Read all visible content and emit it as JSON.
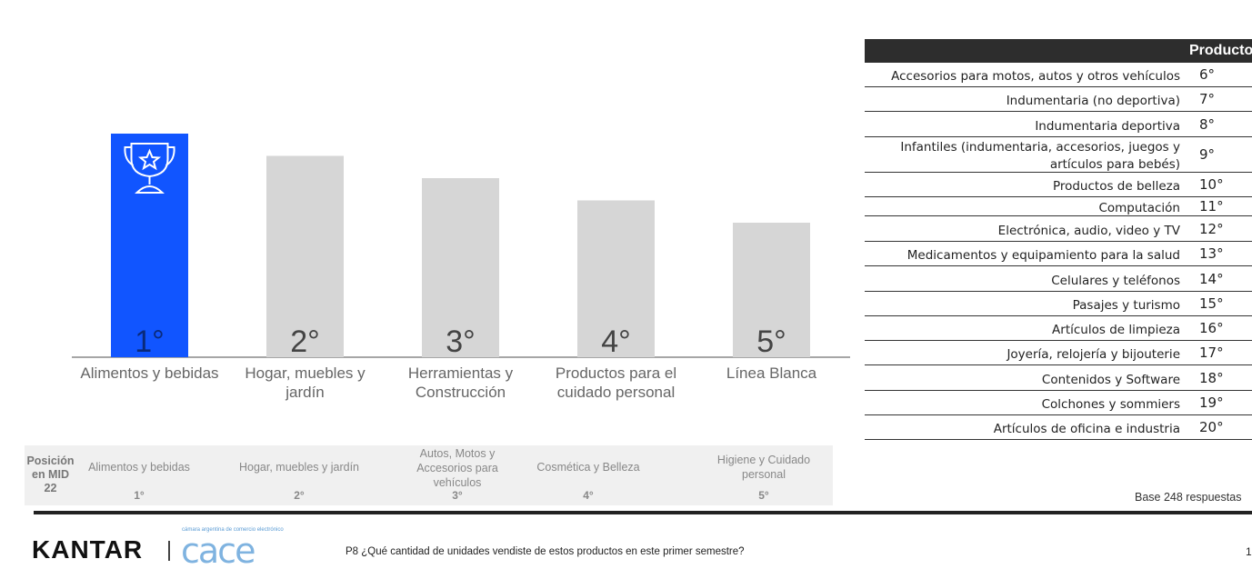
{
  "chart_data": {
    "type": "bar",
    "categories": [
      "Alimentos y bebidas",
      "Hogar, muebles y jardín",
      "Herramientas y Construcción",
      "Productos para el cuidado personal",
      "Línea Blanca"
    ],
    "rank_labels": [
      "1°",
      "2°",
      "3°",
      "4°",
      "5°"
    ],
    "values": [
      5,
      4,
      3,
      2,
      1
    ],
    "highlight_index": 0,
    "colors": {
      "highlight": "#1155FF",
      "default": "#D6D6D6",
      "rank_text_highlight": "#0a2a7a",
      "rank_text_default": "#444444"
    },
    "icon": "trophy-star-icon"
  },
  "table": {
    "header": "Productos",
    "rows": [
      {
        "label": "Accesorios para motos, autos y otros vehículos",
        "position": "6°"
      },
      {
        "label": "Indumentaria (no deportiva)",
        "position": "7°"
      },
      {
        "label": "Indumentaria deportiva",
        "position": "8°"
      },
      {
        "label": "Infantiles (indumentaria, accesorios, juegos y artículos para bebés)",
        "position": "9°"
      },
      {
        "label": "Productos de belleza",
        "position": "10°"
      },
      {
        "label": "Computación",
        "position": "11°"
      },
      {
        "label": "Electrónica, audio, video y TV",
        "position": "12°"
      },
      {
        "label": "Medicamentos y equipamiento para la salud",
        "position": "13°"
      },
      {
        "label": "Celulares y teléfonos",
        "position": "14°"
      },
      {
        "label": "Pasajes y turismo",
        "position": "15°"
      },
      {
        "label": "Artículos de limpieza",
        "position": "16°"
      },
      {
        "label": "Joyería, relojería y bijouterie",
        "position": "17°"
      },
      {
        "label": "Contenidos y Software",
        "position": "18°"
      },
      {
        "label": "Colchones y sommiers",
        "position": "19°"
      },
      {
        "label": "Artículos de oficina e industria",
        "position": "20°"
      }
    ]
  },
  "mid": {
    "title": "Posición en MID 22",
    "items": [
      {
        "label": "Alimentos y bebidas",
        "rank": "1°"
      },
      {
        "label": "Hogar, muebles y jardín",
        "rank": "2°"
      },
      {
        "label": "Autos, Motos y Accesorios para vehículos",
        "rank": "3°"
      },
      {
        "label": "Cosmética y Belleza",
        "rank": "4°"
      },
      {
        "label": "Higiene y Cuidado personal",
        "rank": "5°"
      }
    ]
  },
  "base_note": "Base 248 respuestas",
  "footer": {
    "brand": "KANTAR",
    "partner_tag": "cámara argentina de comercio electrónico",
    "partner_logo": "cace",
    "question": "P8  ¿Qué cantidad de unidades vendiste de estos productos en este primer semestre?",
    "page_number": "1"
  }
}
